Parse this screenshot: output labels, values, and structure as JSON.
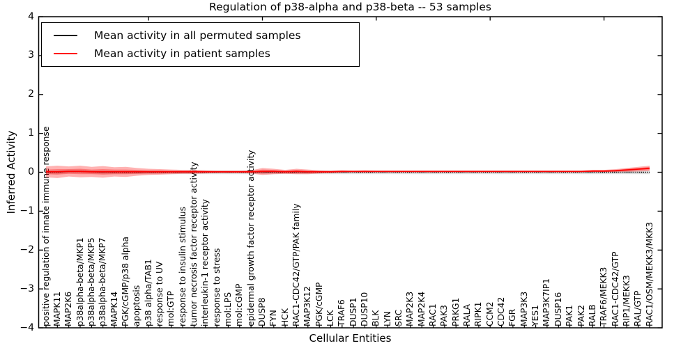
{
  "chart_data": {
    "type": "line",
    "title": "Regulation of p38-alpha and p38-beta -- 53 samples",
    "xlabel": "Cellular Entities",
    "ylabel": "Inferred Activity",
    "ylim": [
      -4,
      4
    ],
    "grid": false,
    "legend_position": "upper left",
    "yticks": {
      "values": [
        4,
        3,
        2,
        1,
        0,
        -1,
        -2,
        -3,
        -4
      ],
      "labels": [
        "4",
        "3",
        "2",
        "1",
        "0",
        "−1",
        "−2",
        "−3",
        "−4"
      ]
    },
    "categories": [
      "positive regulation of innate immune response",
      "MAPK11",
      "MAP2K6",
      "p38alpha-beta/MKP1",
      "p38alpha-beta/MKP5",
      "p38alpha-beta/MKP7",
      "MAPK14",
      "PGK/cGMP/p38 alpha",
      "apoptosis",
      "p38 alpha/TAB1",
      "response to UV",
      "mol:GTP",
      "response to insulin stimulus",
      "tumor necrosis factor receptor activity",
      "interleukin-1 receptor activity",
      "response to stress",
      "mol:LPS",
      "mol:cGMP",
      "epidermal growth factor receptor activity",
      "DUSP8",
      "FYN",
      "HCK",
      "RAC1-CDC42/GTP/PAK family",
      "MAP3K12",
      "PGK/cGMP",
      "LCK",
      "TRAF6",
      "DUSP1",
      "DUSP10",
      "BLK",
      "LYN",
      "SRC",
      "MAP2K3",
      "MAP2K4",
      "RAC1",
      "PAK3",
      "PRKG1",
      "RALA",
      "RIPK1",
      "CCM2",
      "CDC42",
      "FGR",
      "MAP3K3",
      "YES1",
      "MAP3K7IP1",
      "DUSP16",
      "PAK1",
      "PAK2",
      "RALB",
      "TRAF6/MEKK3",
      "RAC1-CDC42/GTP",
      "RIP1/MEKK3",
      "RAL/GTP",
      "RAC1/OSM/MEKK3/MKK3"
    ],
    "series": [
      {
        "name": "Mean activity in all permuted samples",
        "color": "#000000",
        "linestyle": "dotted",
        "values": [
          0,
          0,
          0.02,
          0.02,
          0.01,
          0,
          0,
          0,
          0,
          0,
          0,
          0,
          0,
          0,
          0,
          0,
          0,
          0,
          0,
          0,
          0,
          0,
          0,
          0,
          0,
          0,
          0,
          0,
          0,
          0,
          0,
          0,
          0,
          0,
          0,
          0,
          0,
          0,
          0,
          0,
          0,
          0,
          0,
          0,
          0,
          0,
          0,
          0,
          0,
          0,
          0,
          0,
          0,
          0
        ],
        "band_halfwidth": 0.05,
        "band_color": "rgba(0,0,0,0.12)"
      },
      {
        "name": "Mean activity in patient samples",
        "color": "#ff0000",
        "linestyle": "solid",
        "values": [
          0.01,
          0.01,
          0.02,
          0.02,
          0.01,
          0.01,
          0.01,
          0.01,
          0.01,
          0.01,
          0.01,
          0.01,
          0.01,
          0.01,
          0.01,
          0.01,
          0.01,
          0.01,
          0.01,
          0.02,
          0.02,
          0.01,
          0.02,
          0.01,
          0.01,
          0.01,
          0.02,
          0.02,
          0.02,
          0.02,
          0.02,
          0.02,
          0.02,
          0.02,
          0.02,
          0.02,
          0.02,
          0.02,
          0.02,
          0.02,
          0.02,
          0.02,
          0.02,
          0.02,
          0.02,
          0.02,
          0.02,
          0.02,
          0.03,
          0.03,
          0.04,
          0.06,
          0.08,
          0.1
        ],
        "band_outer": [
          0.14,
          0.16,
          0.13,
          0.15,
          0.13,
          0.15,
          0.12,
          0.13,
          0.1,
          0.08,
          0.07,
          0.06,
          0.05,
          0.05,
          0.04,
          0.03,
          0.03,
          0.03,
          0.04,
          0.09,
          0.07,
          0.05,
          0.07,
          0.06,
          0.04,
          0.03,
          0.03,
          0.02,
          0.03,
          0.02,
          0.02,
          0.02,
          0.02,
          0.02,
          0.02,
          0.02,
          0.02,
          0.02,
          0.02,
          0.02,
          0.02,
          0.02,
          0.02,
          0.02,
          0.02,
          0.02,
          0.02,
          0.02,
          0.03,
          0.03,
          0.04,
          0.05,
          0.06,
          0.07
        ],
        "band_inner": [
          0.06,
          0.07,
          0.06,
          0.07,
          0.06,
          0.07,
          0.06,
          0.06,
          0.05,
          0.04,
          0.04,
          0.03,
          0.03,
          0.03,
          0.02,
          0.02,
          0.02,
          0.02,
          0.02,
          0.05,
          0.04,
          0.03,
          0.04,
          0.03,
          0.02,
          0.02,
          0.02,
          0.01,
          0.02,
          0.01,
          0.01,
          0.01,
          0.01,
          0.01,
          0.01,
          0.01,
          0.01,
          0.01,
          0.01,
          0.01,
          0.01,
          0.01,
          0.01,
          0.01,
          0.01,
          0.01,
          0.01,
          0.01,
          0.02,
          0.02,
          0.02,
          0.03,
          0.03,
          0.04
        ],
        "band_color_outer": "rgba(255,0,0,0.30)",
        "band_color_inner": "rgba(255,0,0,0.30)"
      }
    ],
    "top_tick_indices": [
      9,
      19,
      29,
      39,
      49
    ]
  }
}
